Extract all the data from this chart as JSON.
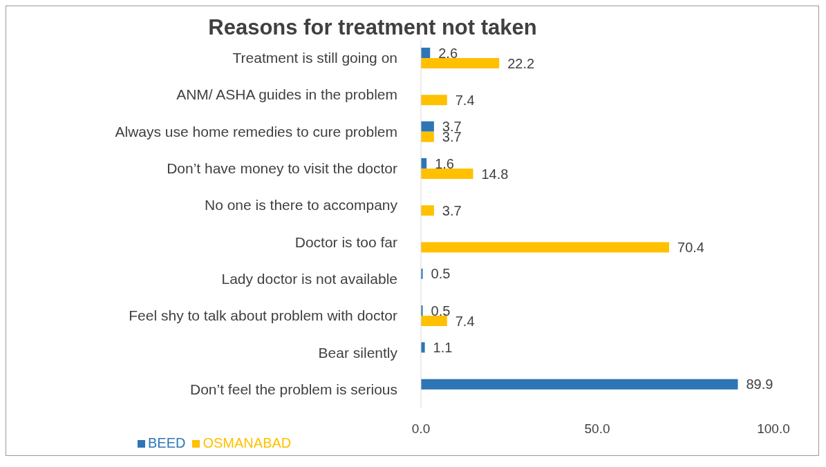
{
  "chart_data": {
    "type": "bar",
    "orientation": "horizontal",
    "title": "Reasons for treatment not taken",
    "categories": [
      "Treatment is still going on",
      "ANM/ ASHA guides in the problem",
      "Always use home remedies to cure problem",
      "Don’t have money to visit the doctor",
      "No one is there to accompany",
      "Doctor is too far",
      "Lady doctor is not available",
      "Feel shy to talk about problem with doctor",
      "Bear silently",
      "Don’t feel the problem is serious"
    ],
    "series": [
      {
        "name": "BEED",
        "color": "#2e75b6",
        "values": [
          2.6,
          null,
          3.7,
          1.6,
          null,
          null,
          0.5,
          0.5,
          1.1,
          89.9
        ]
      },
      {
        "name": "OSMANABAD",
        "color": "#ffc000",
        "values": [
          22.2,
          7.4,
          3.7,
          14.8,
          3.7,
          70.4,
          null,
          7.4,
          null,
          null
        ]
      }
    ],
    "xlim": [
      0,
      100
    ],
    "xticks": [
      {
        "value": 0,
        "label": "0.0"
      },
      {
        "value": 50,
        "label": "50.0"
      },
      {
        "value": 100,
        "label": "100.0"
      }
    ],
    "data_labels": true,
    "grid": false,
    "legend": "bottom left"
  }
}
